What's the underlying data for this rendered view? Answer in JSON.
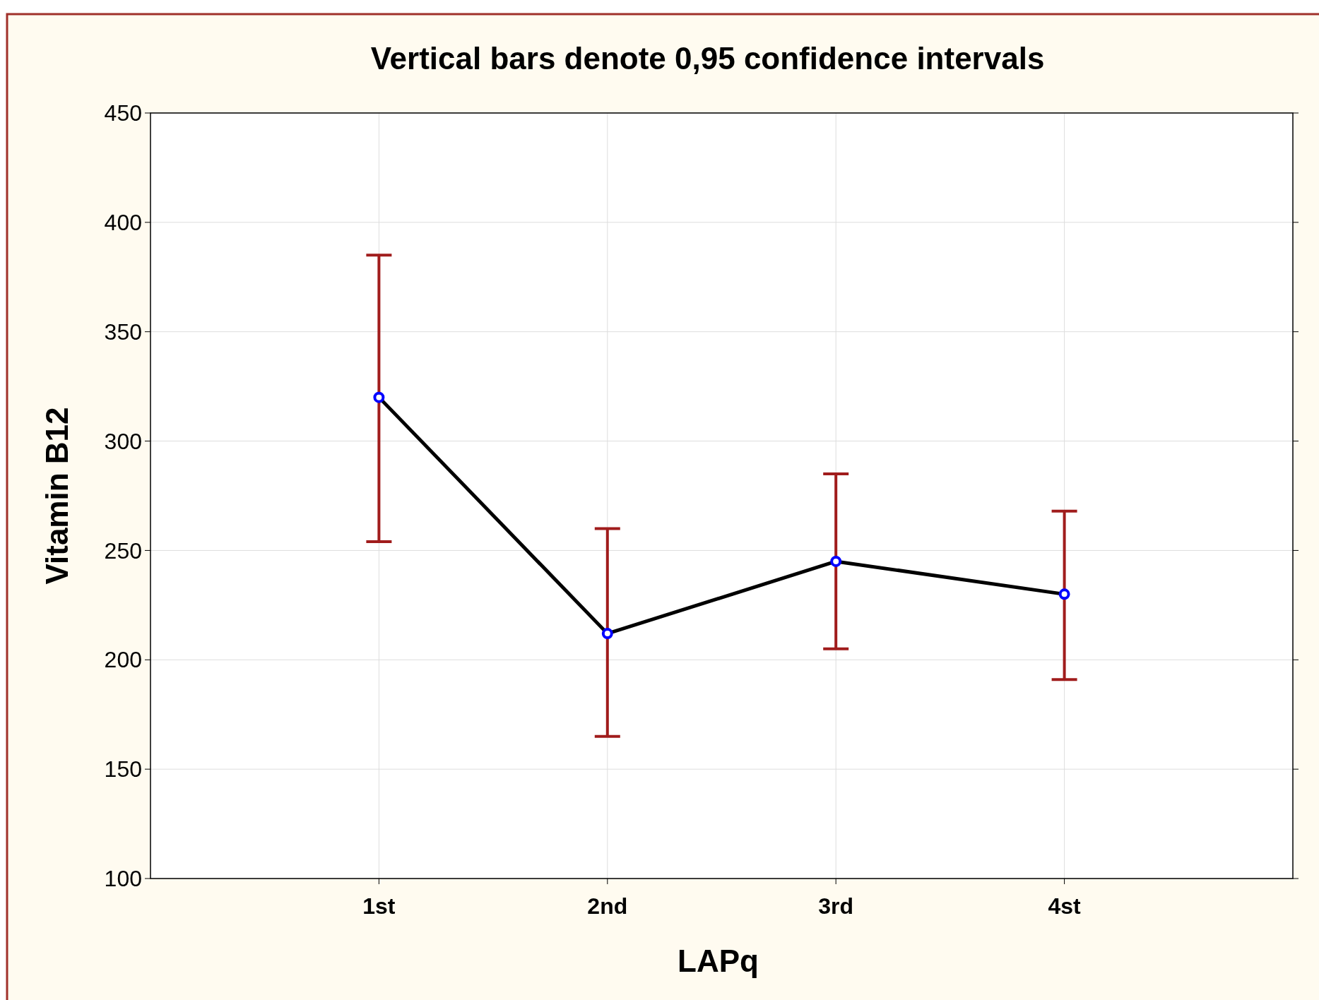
{
  "chart_data": {
    "type": "line",
    "title": "Vertical bars denote 0,95 confidence intervals",
    "xlabel": "LAPq",
    "ylabel": "Vitamin B12",
    "categories": [
      "1st",
      "2nd",
      "3rd",
      "4st"
    ],
    "series": [
      {
        "color": "#000000",
        "values": [
          320,
          212,
          245,
          230
        ],
        "errors": [
          [
            254,
            385
          ],
          [
            165,
            260
          ],
          [
            205,
            285
          ],
          [
            191,
            268
          ]
        ]
      }
    ],
    "ylim": [
      100,
      450
    ],
    "yticks": [
      100,
      150,
      200,
      250,
      300,
      350,
      400,
      450
    ],
    "grid": true,
    "marker": "circle"
  }
}
